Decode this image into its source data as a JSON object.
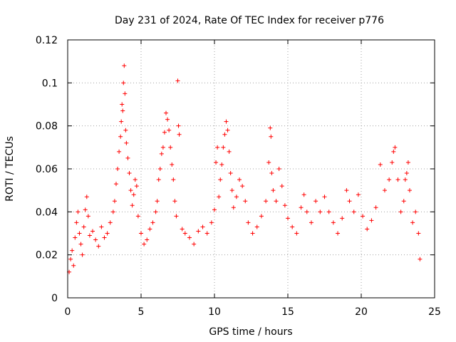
{
  "chart_data": {
    "type": "scatter",
    "title": "Day 231 of 2024, Rate Of TEC Index for receiver p776",
    "xlabel": "GPS time / hours",
    "ylabel": "ROTI / TECUs",
    "xlim": [
      0,
      25
    ],
    "ylim": [
      0,
      0.12
    ],
    "xticks": [
      0,
      5,
      10,
      15,
      20,
      25
    ],
    "xtick_labels": [
      "0",
      "5",
      "10",
      "15",
      "20",
      "25"
    ],
    "yticks": [
      0,
      0.02,
      0.04,
      0.06,
      0.08,
      0.1,
      0.12
    ],
    "ytick_labels": [
      "0",
      "0.02",
      "0.04",
      "0.06",
      "0.08",
      "0.1",
      "0.12"
    ],
    "grid": true,
    "marker": "+",
    "color": "#ff0000",
    "series": [
      {
        "name": "ROTI",
        "points": [
          [
            0.1,
            0.012
          ],
          [
            0.2,
            0.018
          ],
          [
            0.3,
            0.022
          ],
          [
            0.4,
            0.015
          ],
          [
            0.5,
            0.028
          ],
          [
            0.6,
            0.035
          ],
          [
            0.7,
            0.04
          ],
          [
            0.8,
            0.03
          ],
          [
            0.9,
            0.025
          ],
          [
            1.0,
            0.02
          ],
          [
            1.1,
            0.033
          ],
          [
            1.2,
            0.041
          ],
          [
            1.3,
            0.047
          ],
          [
            1.4,
            0.038
          ],
          [
            1.5,
            0.029
          ],
          [
            1.7,
            0.031
          ],
          [
            1.9,
            0.027
          ],
          [
            2.1,
            0.024
          ],
          [
            2.3,
            0.033
          ],
          [
            2.5,
            0.028
          ],
          [
            2.7,
            0.03
          ],
          [
            2.9,
            0.035
          ],
          [
            3.1,
            0.04
          ],
          [
            3.2,
            0.045
          ],
          [
            3.3,
            0.053
          ],
          [
            3.4,
            0.06
          ],
          [
            3.5,
            0.068
          ],
          [
            3.6,
            0.075
          ],
          [
            3.65,
            0.082
          ],
          [
            3.7,
            0.09
          ],
          [
            3.75,
            0.087
          ],
          [
            3.8,
            0.1
          ],
          [
            3.85,
            0.108
          ],
          [
            3.9,
            0.095
          ],
          [
            3.95,
            0.078
          ],
          [
            4.0,
            0.072
          ],
          [
            4.1,
            0.065
          ],
          [
            4.2,
            0.058
          ],
          [
            4.3,
            0.05
          ],
          [
            4.4,
            0.043
          ],
          [
            4.5,
            0.048
          ],
          [
            4.6,
            0.055
          ],
          [
            4.7,
            0.052
          ],
          [
            4.8,
            0.038
          ],
          [
            5.0,
            0.03
          ],
          [
            5.2,
            0.025
          ],
          [
            5.4,
            0.027
          ],
          [
            5.6,
            0.032
          ],
          [
            5.8,
            0.035
          ],
          [
            6.0,
            0.04
          ],
          [
            6.1,
            0.045
          ],
          [
            6.2,
            0.055
          ],
          [
            6.3,
            0.06
          ],
          [
            6.4,
            0.067
          ],
          [
            6.5,
            0.07
          ],
          [
            6.6,
            0.077
          ],
          [
            6.7,
            0.086
          ],
          [
            6.8,
            0.083
          ],
          [
            6.9,
            0.078
          ],
          [
            7.0,
            0.07
          ],
          [
            7.1,
            0.062
          ],
          [
            7.2,
            0.055
          ],
          [
            7.3,
            0.045
          ],
          [
            7.4,
            0.038
          ],
          [
            7.5,
            0.101
          ],
          [
            7.55,
            0.08
          ],
          [
            7.6,
            0.076
          ],
          [
            7.8,
            0.032
          ],
          [
            8.0,
            0.03
          ],
          [
            8.3,
            0.028
          ],
          [
            8.6,
            0.025
          ],
          [
            8.9,
            0.031
          ],
          [
            9.2,
            0.033
          ],
          [
            9.5,
            0.03
          ],
          [
            9.8,
            0.035
          ],
          [
            10.0,
            0.041
          ],
          [
            10.1,
            0.063
          ],
          [
            10.2,
            0.07
          ],
          [
            10.3,
            0.047
          ],
          [
            10.4,
            0.055
          ],
          [
            10.5,
            0.062
          ],
          [
            10.6,
            0.07
          ],
          [
            10.7,
            0.076
          ],
          [
            10.8,
            0.082
          ],
          [
            10.9,
            0.078
          ],
          [
            11.0,
            0.068
          ],
          [
            11.1,
            0.058
          ],
          [
            11.2,
            0.05
          ],
          [
            11.3,
            0.042
          ],
          [
            11.5,
            0.047
          ],
          [
            11.7,
            0.055
          ],
          [
            11.9,
            0.052
          ],
          [
            12.1,
            0.045
          ],
          [
            12.3,
            0.035
          ],
          [
            12.6,
            0.03
          ],
          [
            12.9,
            0.033
          ],
          [
            13.2,
            0.038
          ],
          [
            13.5,
            0.045
          ],
          [
            13.7,
            0.063
          ],
          [
            13.8,
            0.079
          ],
          [
            13.85,
            0.075
          ],
          [
            13.9,
            0.058
          ],
          [
            14.0,
            0.05
          ],
          [
            14.2,
            0.045
          ],
          [
            14.4,
            0.06
          ],
          [
            14.6,
            0.052
          ],
          [
            14.8,
            0.043
          ],
          [
            15.0,
            0.037
          ],
          [
            15.3,
            0.033
          ],
          [
            15.6,
            0.03
          ],
          [
            15.9,
            0.042
          ],
          [
            16.1,
            0.048
          ],
          [
            16.3,
            0.04
          ],
          [
            16.6,
            0.035
          ],
          [
            16.9,
            0.045
          ],
          [
            17.2,
            0.04
          ],
          [
            17.5,
            0.047
          ],
          [
            17.8,
            0.04
          ],
          [
            18.1,
            0.035
          ],
          [
            18.4,
            0.03
          ],
          [
            18.7,
            0.037
          ],
          [
            19.0,
            0.05
          ],
          [
            19.2,
            0.045
          ],
          [
            19.5,
            0.04
          ],
          [
            19.8,
            0.048
          ],
          [
            20.1,
            0.038
          ],
          [
            20.4,
            0.032
          ],
          [
            20.7,
            0.036
          ],
          [
            21.0,
            0.042
          ],
          [
            21.3,
            0.062
          ],
          [
            21.6,
            0.05
          ],
          [
            21.9,
            0.055
          ],
          [
            22.1,
            0.063
          ],
          [
            22.2,
            0.068
          ],
          [
            22.3,
            0.07
          ],
          [
            22.5,
            0.055
          ],
          [
            22.7,
            0.04
          ],
          [
            22.9,
            0.045
          ],
          [
            23.0,
            0.055
          ],
          [
            23.1,
            0.058
          ],
          [
            23.2,
            0.063
          ],
          [
            23.3,
            0.05
          ],
          [
            23.5,
            0.035
          ],
          [
            23.7,
            0.04
          ],
          [
            23.9,
            0.03
          ],
          [
            24.0,
            0.018
          ]
        ]
      }
    ]
  }
}
